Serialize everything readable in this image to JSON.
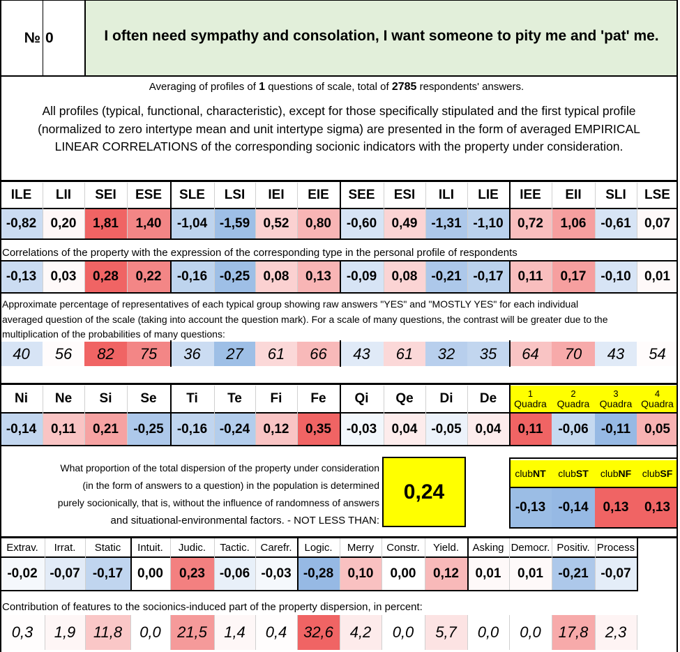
{
  "header": {
    "number_label": "№",
    "number_value": "0",
    "title": "I often need sympathy and consolation, I want someone to pity me and 'pat' me."
  },
  "averaging": {
    "prefix": "Averaging of profiles of ",
    "questions": "1",
    "middle": " questions of scale, total of ",
    "respondents": "2785",
    "suffix": " respondents' answers."
  },
  "description": [
    "All profiles (typical, functional, characteristic), except for those specifically stipulated and the first typical profile",
    "(normalized to zero intertype mean and unit intertype sigma) are presented in the form of averaged EMPIRICAL",
    "LINEAR CORRELATIONS of the corresponding socionic indicators with the property under consideration."
  ],
  "types": [
    "ILE",
    "LII",
    "SEI",
    "ESE",
    "SLE",
    "LSI",
    "IEI",
    "EIE",
    "SEE",
    "ESI",
    "ILI",
    "LIE",
    "IEE",
    "EII",
    "SLI",
    "LSE"
  ],
  "typical_profile": [
    "-0,82",
    "0,20",
    "1,81",
    "1,40",
    "-1,04",
    "-1,59",
    "0,52",
    "0,80",
    "-0,60",
    "0,49",
    "-1,31",
    "-1,10",
    "0,72",
    "1,06",
    "-0,61",
    "0,07"
  ],
  "correlation_caption": "Correlations of the property with the expression of the corresponding type in the personal profile of respondents",
  "type_correlations": [
    "-0,13",
    "0,03",
    "0,28",
    "0,22",
    "-0,16",
    "-0,25",
    "0,08",
    "0,13",
    "-0,09",
    "0,08",
    "-0,21",
    "-0,17",
    "0,11",
    "0,17",
    "-0,10",
    "0,01"
  ],
  "percentage_caption": [
    "Approximate percentage of representatives of each typical group showing raw answers \"YES\" and \"MOSTLY YES\" for each individual",
    "averaged question of the scale (taking into account the question mark). For a scale of many questions, the contrast will be greater due to the",
    "multiplication of the probabilities of many questions:"
  ],
  "percentages": [
    "40",
    "56",
    "82",
    "75",
    "36",
    "27",
    "61",
    "66",
    "43",
    "61",
    "32",
    "35",
    "64",
    "70",
    "43",
    "54"
  ],
  "functions": [
    "Ni",
    "Ne",
    "Si",
    "Se",
    "Ti",
    "Te",
    "Fi",
    "Fe",
    "Qi",
    "Qe",
    "Di",
    "De"
  ],
  "function_values": [
    "-0,14",
    "0,11",
    "0,21",
    "-0,25",
    "-0,16",
    "-0,24",
    "0,12",
    "0,35",
    "-0,03",
    "0,04",
    "-0,05",
    "0,04"
  ],
  "quadras": [
    {
      "num": "1",
      "label": "Quadra"
    },
    {
      "num": "2",
      "label": "Quadra"
    },
    {
      "num": "3",
      "label": "Quadra"
    },
    {
      "num": "4",
      "label": "Quadra"
    }
  ],
  "quadra_values": [
    "0,11",
    "-0,06",
    "-0,11",
    "0,05"
  ],
  "dispersion_text": [
    "What proportion of the total dispersion of the property under consideration",
    "(in the form of answers to a question) in the population is determined",
    "purely socionically, that is, without the influence of randomness of answers",
    "and situational-environmental factors. - NOT LESS THAN:"
  ],
  "dispersion_value": "0,24",
  "clubs": [
    {
      "prefix": "club",
      "bold": "NT"
    },
    {
      "prefix": "club",
      "bold": "ST"
    },
    {
      "prefix": "club",
      "bold": "NF"
    },
    {
      "prefix": "club",
      "bold": "SF"
    }
  ],
  "club_values": [
    "-0,13",
    "-0,14",
    "0,13",
    "0,13"
  ],
  "features": [
    "Extrav.",
    "Irrat.",
    "Static",
    "Intuit.",
    "Judic.",
    "Tactic.",
    "Carefr.",
    "Logic.",
    "Merry",
    "Constr.",
    "Yield.",
    "Asking",
    "Democr.",
    "Positiv.",
    "Process"
  ],
  "feature_values": [
    "-0,02",
    "-0,07",
    "-0,17",
    "0,00",
    "0,23",
    "-0,06",
    "-0,03",
    "-0,28",
    "0,10",
    "0,00",
    "0,12",
    "0,01",
    "0,01",
    "-0,21",
    "-0,07"
  ],
  "contribution_caption": "Contribution of features to the socionics-induced part of the property dispersion, in percent:",
  "contributions": [
    "0,3",
    "1,9",
    "11,8",
    "0,0",
    "21,5",
    "1,4",
    "0,4",
    "32,6",
    "4,2",
    "0,0",
    "5,7",
    "0,0",
    "0,0",
    "17,8",
    "2,3"
  ],
  "colors": {
    "title_bg": "#e2efda",
    "yellow": "#ffff00",
    "neg": [
      150,
      185,
      228
    ],
    "pos": [
      240,
      100,
      100
    ]
  },
  "color_levels": {
    "typical_profile": [
      0.5,
      0.05,
      1,
      0.78,
      0.62,
      0.92,
      0.3,
      0.48,
      0.38,
      0.28,
      0.78,
      0.65,
      0.42,
      0.62,
      0.38,
      0.04
    ],
    "type_correlations": [
      0.5,
      0.04,
      1,
      0.78,
      0.62,
      0.92,
      0.3,
      0.48,
      0.38,
      0.28,
      0.78,
      0.65,
      0.42,
      0.62,
      0.38,
      0.04
    ],
    "percentages": [
      0.38,
      0.02,
      1,
      0.78,
      0.5,
      0.92,
      0.25,
      0.45,
      0.3,
      0.25,
      0.68,
      0.58,
      0.38,
      0.55,
      0.3,
      0.02
    ],
    "function_values": [
      0.58,
      0.38,
      0.6,
      0.78,
      0.6,
      0.72,
      0.38,
      1,
      0.12,
      0.12,
      0.18,
      0.12
    ],
    "quadra_values": [
      1,
      0.55,
      1,
      0.5
    ],
    "club_values": [
      0.95,
      1,
      1,
      1
    ],
    "feature_values": [
      0.1,
      0.28,
      0.6,
      0,
      0.82,
      0.22,
      0.1,
      1,
      0.4,
      0,
      0.45,
      0.04,
      0.04,
      0.78,
      0.26
    ],
    "contributions": [
      0.01,
      0.06,
      0.36,
      0,
      0.65,
      0.05,
      0.01,
      1,
      0.13,
      0,
      0.18,
      0,
      0,
      0.55,
      0.07
    ]
  }
}
